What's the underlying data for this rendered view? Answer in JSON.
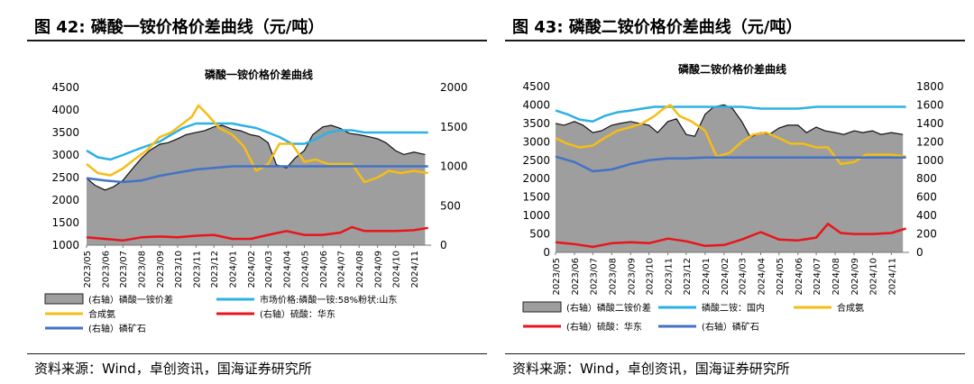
{
  "panels": [
    {
      "figure_label": "图 42:",
      "figure_title": "磷酸一铵价格价差曲线（元/吨）",
      "source": "资料来源：Wind，卓创资讯，国海证券研究所"
    },
    {
      "figure_label": "图 43:",
      "figure_title": "磷酸二铵价格价差曲线（元/吨）",
      "source": "资料来源：Wind，卓创资讯，国海证券研究所"
    }
  ],
  "chart_data": [
    {
      "type": "line",
      "title": "磷酸一铵价格价差曲线",
      "x_tick_labels": [
        "2023/05",
        "2023/06",
        "2023/07",
        "2023/08",
        "2023/09",
        "2023/10",
        "2023/11",
        "2023/12",
        "2024/01",
        "2024/02",
        "2024/03",
        "2024/04",
        "2024/05",
        "2024/06",
        "2024/07",
        "2024/08",
        "2024/09",
        "2024/10",
        "2024/11"
      ],
      "y_left_ticks": [
        "1000",
        "1500",
        "2000",
        "2500",
        "3000",
        "3500",
        "4000",
        "4500"
      ],
      "y_left_range": [
        1000,
        4500
      ],
      "y_right_ticks": [
        "0",
        "500",
        "1000",
        "1500",
        "2000"
      ],
      "y_right_range": [
        0,
        2000
      ],
      "legend_rows": [
        [
          "(右轴）磷酸一铵价差",
          "市场价格:磷酸一铵:58%粉状:山东"
        ],
        [
          "合成氨",
          "(右轴）硫酸：华东"
        ],
        [
          "(右轴）磷矿石"
        ]
      ],
      "series": [
        {
          "name": "(右轴）磷酸一铵价差",
          "axis": "right",
          "kind": "area",
          "color": "#9e9e9e",
          "x": [
            "2023-05-01",
            "2023-05-15",
            "2023-06-01",
            "2023-06-15",
            "2023-07-01",
            "2023-07-15",
            "2023-08-01",
            "2023-08-15",
            "2023-09-01",
            "2023-09-15",
            "2023-10-01",
            "2023-10-15",
            "2023-11-01",
            "2023-11-15",
            "2023-12-01",
            "2023-12-15",
            "2024-01-01",
            "2024-01-15",
            "2024-02-01",
            "2024-02-15",
            "2024-03-01",
            "2024-03-15",
            "2024-04-01",
            "2024-04-15",
            "2024-05-01",
            "2024-05-15",
            "2024-06-01",
            "2024-06-15",
            "2024-07-01",
            "2024-07-15",
            "2024-08-01",
            "2024-08-15",
            "2024-09-01",
            "2024-09-15",
            "2024-10-01",
            "2024-10-15",
            "2024-11-01",
            "2024-11-20"
          ],
          "values": [
            850,
            760,
            700,
            740,
            820,
            950,
            1100,
            1200,
            1280,
            1300,
            1350,
            1400,
            1430,
            1450,
            1500,
            1520,
            1470,
            1450,
            1400,
            1380,
            1300,
            1020,
            980,
            1100,
            1200,
            1400,
            1500,
            1520,
            1480,
            1420,
            1400,
            1380,
            1350,
            1300,
            1200,
            1150,
            1180,
            1150
          ]
        },
        {
          "name": "市场价格:磷酸一铵:58%粉状:山东",
          "axis": "left",
          "color": "#2db1e4",
          "x": [
            "2023-05-01",
            "2023-05-20",
            "2023-06-10",
            "2023-07-01",
            "2023-07-20",
            "2023-08-10",
            "2023-09-01",
            "2023-09-20",
            "2023-10-10",
            "2023-11-01",
            "2023-11-20",
            "2023-12-10",
            "2024-01-01",
            "2024-01-20",
            "2024-02-10",
            "2024-03-01",
            "2024-03-20",
            "2024-04-10",
            "2024-05-01",
            "2024-05-20",
            "2024-06-10",
            "2024-07-01",
            "2024-07-20",
            "2024-08-10",
            "2024-09-01",
            "2024-09-20",
            "2024-10-10",
            "2024-11-01",
            "2024-11-25"
          ],
          "values": [
            3100,
            2950,
            2900,
            3000,
            3100,
            3200,
            3300,
            3450,
            3600,
            3700,
            3700,
            3700,
            3700,
            3650,
            3600,
            3500,
            3400,
            3250,
            3250,
            3350,
            3500,
            3550,
            3550,
            3500,
            3500,
            3500,
            3500,
            3500,
            3500
          ]
        },
        {
          "name": "合成氨",
          "axis": "left",
          "color": "#f5bd16",
          "x": [
            "2023-05-01",
            "2023-05-20",
            "2023-06-10",
            "2023-07-01",
            "2023-07-20",
            "2023-08-10",
            "2023-09-01",
            "2023-09-20",
            "2023-10-10",
            "2023-10-25",
            "2023-11-05",
            "2023-11-20",
            "2023-12-10",
            "2024-01-01",
            "2024-01-20",
            "2024-02-10",
            "2024-03-01",
            "2024-03-20",
            "2024-04-10",
            "2024-05-01",
            "2024-05-20",
            "2024-06-10",
            "2024-07-01",
            "2024-07-20",
            "2024-08-10",
            "2024-09-01",
            "2024-09-20",
            "2024-10-10",
            "2024-11-01",
            "2024-11-25"
          ],
          "values": [
            2800,
            2600,
            2550,
            2700,
            2900,
            3100,
            3400,
            3500,
            3700,
            3850,
            4100,
            3900,
            3600,
            3450,
            3200,
            2650,
            2800,
            3250,
            3250,
            2850,
            2900,
            2800,
            2800,
            2800,
            2400,
            2500,
            2650,
            2600,
            2650,
            2600
          ]
        },
        {
          "name": "(右轴）硫酸：华东",
          "axis": "right",
          "color": "#e8151c",
          "x": [
            "2023-05-01",
            "2023-06-01",
            "2023-07-01",
            "2023-08-01",
            "2023-09-01",
            "2023-10-01",
            "2023-11-01",
            "2023-12-01",
            "2024-01-01",
            "2024-02-01",
            "2024-03-01",
            "2024-04-01",
            "2024-05-01",
            "2024-06-01",
            "2024-07-01",
            "2024-07-20",
            "2024-08-10",
            "2024-09-01",
            "2024-10-01",
            "2024-11-01",
            "2024-11-25"
          ],
          "values": [
            100,
            80,
            60,
            100,
            110,
            100,
            120,
            130,
            80,
            80,
            130,
            180,
            130,
            130,
            160,
            230,
            180,
            180,
            180,
            190,
            220
          ]
        },
        {
          "name": "(右轴）磷矿石",
          "axis": "right",
          "color": "#4472c4",
          "x": [
            "2023-05-01",
            "2023-06-01",
            "2023-07-01",
            "2023-08-01",
            "2023-09-01",
            "2023-10-01",
            "2023-11-01",
            "2023-12-01",
            "2024-01-01",
            "2024-03-01",
            "2024-05-01",
            "2024-07-01",
            "2024-09-01",
            "2024-11-25"
          ],
          "values": [
            850,
            820,
            800,
            820,
            880,
            920,
            960,
            980,
            1000,
            1000,
            1000,
            1000,
            1000,
            1000
          ]
        }
      ]
    },
    {
      "type": "line",
      "title": "磷酸二铵价格价差曲线",
      "x_tick_labels": [
        "2023/05",
        "2023/06",
        "2023/07",
        "2023/08",
        "2023/09",
        "2023/10",
        "2023/11",
        "2023/12",
        "2024/01",
        "2024/02",
        "2024/03",
        "2024/04",
        "2024/05",
        "2024/06",
        "2024/07",
        "2024/08",
        "2024/09",
        "2024/10",
        "2024/11"
      ],
      "y_left_ticks": [
        "0",
        "500",
        "1000",
        "1500",
        "2000",
        "2500",
        "3000",
        "3500",
        "4000",
        "4500"
      ],
      "y_left_range": [
        0,
        4500
      ],
      "y_right_ticks": [
        "0",
        "200",
        "400",
        "600",
        "800",
        "1000",
        "1200",
        "1400",
        "1600",
        "1800"
      ],
      "y_right_range": [
        0,
        1800
      ],
      "legend_rows": [
        [
          "(右轴）磷酸二铵价差",
          "磷酸二铵：国内",
          "合成氨"
        ],
        [
          "(右轴）硫酸：华东",
          "(右轴）磷矿石"
        ]
      ],
      "series": [
        {
          "name": "(右轴）磷酸二铵价差",
          "axis": "right",
          "kind": "area",
          "color": "#9e9e9e",
          "x": [
            "2023-05-01",
            "2023-05-15",
            "2023-06-01",
            "2023-06-15",
            "2023-07-01",
            "2023-07-15",
            "2023-08-01",
            "2023-08-15",
            "2023-09-01",
            "2023-09-15",
            "2023-10-01",
            "2023-10-15",
            "2023-11-01",
            "2023-11-15",
            "2023-12-01",
            "2023-12-15",
            "2024-01-01",
            "2024-01-15",
            "2024-02-01",
            "2024-02-15",
            "2024-03-01",
            "2024-03-15",
            "2024-04-01",
            "2024-04-15",
            "2024-05-01",
            "2024-05-15",
            "2024-06-01",
            "2024-06-15",
            "2024-07-01",
            "2024-07-15",
            "2024-08-01",
            "2024-08-15",
            "2024-09-01",
            "2024-09-15",
            "2024-10-01",
            "2024-10-15",
            "2024-11-01",
            "2024-11-20"
          ],
          "values": [
            1400,
            1380,
            1420,
            1380,
            1300,
            1320,
            1380,
            1400,
            1420,
            1400,
            1380,
            1300,
            1420,
            1450,
            1280,
            1260,
            1500,
            1580,
            1600,
            1560,
            1420,
            1250,
            1300,
            1280,
            1350,
            1380,
            1380,
            1300,
            1360,
            1320,
            1300,
            1280,
            1320,
            1300,
            1320,
            1280,
            1300,
            1280
          ]
        },
        {
          "name": "磷酸二铵：国内",
          "axis": "left",
          "color": "#2db1e4",
          "x": [
            "2023-05-01",
            "2023-05-20",
            "2023-06-10",
            "2023-07-01",
            "2023-07-20",
            "2023-08-10",
            "2023-09-01",
            "2023-09-20",
            "2023-10-10",
            "2023-11-01",
            "2023-12-01",
            "2024-01-01",
            "2024-02-01",
            "2024-03-01",
            "2024-04-01",
            "2024-05-01",
            "2024-06-01",
            "2024-07-01",
            "2024-08-01",
            "2024-09-01",
            "2024-10-01",
            "2024-11-01",
            "2024-11-25"
          ],
          "values": [
            3850,
            3750,
            3600,
            3550,
            3700,
            3800,
            3850,
            3900,
            3950,
            3950,
            3950,
            3950,
            3950,
            3950,
            3900,
            3900,
            3900,
            3950,
            3950,
            3950,
            3950,
            3950,
            3950
          ]
        },
        {
          "name": "合成氨",
          "axis": "left",
          "color": "#f5bd16",
          "x": [
            "2023-05-01",
            "2023-05-20",
            "2023-06-10",
            "2023-07-01",
            "2023-07-20",
            "2023-08-10",
            "2023-09-01",
            "2023-09-20",
            "2023-10-10",
            "2023-10-25",
            "2023-11-05",
            "2023-11-20",
            "2023-12-10",
            "2024-01-01",
            "2024-01-20",
            "2024-02-10",
            "2024-03-01",
            "2024-03-20",
            "2024-04-10",
            "2024-05-01",
            "2024-05-20",
            "2024-06-10",
            "2024-07-01",
            "2024-07-20",
            "2024-08-10",
            "2024-09-01",
            "2024-09-20",
            "2024-10-10",
            "2024-11-01",
            "2024-11-25"
          ],
          "values": [
            3100,
            2950,
            2850,
            2900,
            3100,
            3300,
            3400,
            3500,
            3700,
            3900,
            4000,
            3700,
            3550,
            3300,
            2600,
            2700,
            3000,
            3200,
            3250,
            3100,
            2950,
            2950,
            2850,
            2850,
            2400,
            2450,
            2650,
            2650,
            2650,
            2600
          ]
        },
        {
          "name": "(右轴）硫酸：华东",
          "axis": "right",
          "color": "#e8151c",
          "x": [
            "2023-05-01",
            "2023-06-01",
            "2023-07-01",
            "2023-08-01",
            "2023-09-01",
            "2023-10-01",
            "2023-11-01",
            "2023-12-01",
            "2024-01-01",
            "2024-02-01",
            "2024-03-01",
            "2024-04-01",
            "2024-05-01",
            "2024-06-01",
            "2024-07-01",
            "2024-07-20",
            "2024-08-10",
            "2024-09-01",
            "2024-10-01",
            "2024-11-01",
            "2024-11-25"
          ],
          "values": [
            110,
            90,
            60,
            100,
            110,
            100,
            150,
            120,
            70,
            80,
            140,
            220,
            140,
            130,
            160,
            310,
            210,
            200,
            200,
            210,
            260
          ]
        },
        {
          "name": "(右轴）磷矿石",
          "axis": "right",
          "color": "#4472c4",
          "x": [
            "2023-05-01",
            "2023-06-01",
            "2023-07-01",
            "2023-08-01",
            "2023-09-01",
            "2023-10-01",
            "2023-11-01",
            "2023-12-01",
            "2024-01-01",
            "2024-03-01",
            "2024-05-01",
            "2024-07-01",
            "2024-09-01",
            "2024-11-25"
          ],
          "values": [
            1040,
            980,
            880,
            900,
            960,
            1000,
            1020,
            1020,
            1030,
            1030,
            1030,
            1030,
            1030,
            1030
          ]
        }
      ]
    }
  ]
}
